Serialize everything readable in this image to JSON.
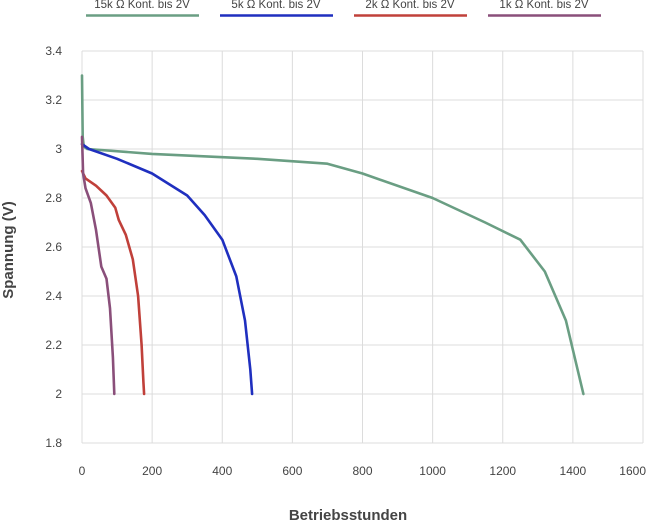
{
  "chart_data": {
    "type": "line",
    "xlabel": "Betriebsstunden",
    "ylabel": "Spannung (V)",
    "xlim": [
      0,
      1600
    ],
    "ylim": [
      1.8,
      3.4
    ],
    "x_ticks": [
      "0",
      "200",
      "400",
      "600",
      "800",
      "1000",
      "1200",
      "1400",
      "1600"
    ],
    "y_ticks": [
      "1.8",
      "2",
      "2.2",
      "2.4",
      "2.6",
      "2.8",
      "3",
      "3.2",
      "3.4"
    ],
    "grid": true,
    "legend_position": "top",
    "series": [
      {
        "name": "15k Ω Kont. bis 2V",
        "color": "#6a9e83",
        "points": [
          [
            0,
            3.3
          ],
          [
            2,
            3.05
          ],
          [
            5,
            3.01
          ],
          [
            15,
            3.0
          ],
          [
            200,
            2.98
          ],
          [
            500,
            2.96
          ],
          [
            700,
            2.94
          ],
          [
            800,
            2.9
          ],
          [
            1000,
            2.8
          ],
          [
            1150,
            2.7
          ],
          [
            1250,
            2.63
          ],
          [
            1320,
            2.5
          ],
          [
            1380,
            2.3
          ],
          [
            1430,
            2.0
          ]
        ]
      },
      {
        "name": "5k Ω Kont. bis 2V",
        "color": "#1f2fbf",
        "points": [
          [
            0,
            3.02
          ],
          [
            20,
            3.0
          ],
          [
            100,
            2.96
          ],
          [
            200,
            2.9
          ],
          [
            300,
            2.81
          ],
          [
            350,
            2.73
          ],
          [
            400,
            2.63
          ],
          [
            440,
            2.48
          ],
          [
            465,
            2.3
          ],
          [
            480,
            2.1
          ],
          [
            485,
            2.0
          ]
        ]
      },
      {
        "name": "2k Ω Kont. bis 2V",
        "color": "#c0403a",
        "points": [
          [
            0,
            2.91
          ],
          [
            10,
            2.88
          ],
          [
            40,
            2.85
          ],
          [
            70,
            2.81
          ],
          [
            95,
            2.76
          ],
          [
            105,
            2.71
          ],
          [
            125,
            2.65
          ],
          [
            145,
            2.55
          ],
          [
            160,
            2.4
          ],
          [
            170,
            2.2
          ],
          [
            175,
            2.05
          ],
          [
            177,
            2.0
          ]
        ]
      },
      {
        "name": "1k Ω Kont. bis 2V",
        "color": "#8a4f7a",
        "points": [
          [
            0,
            3.05
          ],
          [
            3,
            2.9
          ],
          [
            10,
            2.84
          ],
          [
            25,
            2.78
          ],
          [
            40,
            2.67
          ],
          [
            55,
            2.52
          ],
          [
            70,
            2.47
          ],
          [
            80,
            2.35
          ],
          [
            88,
            2.15
          ],
          [
            92,
            2.0
          ]
        ]
      }
    ]
  }
}
